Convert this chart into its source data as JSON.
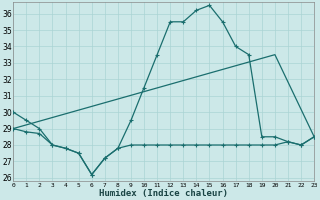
{
  "xlabel": "Humidex (Indice chaleur)",
  "xlim": [
    0,
    23
  ],
  "ylim": [
    25.8,
    36.7
  ],
  "yticks": [
    26,
    27,
    28,
    29,
    30,
    31,
    32,
    33,
    34,
    35,
    36
  ],
  "xticks": [
    0,
    1,
    2,
    3,
    4,
    5,
    6,
    7,
    8,
    9,
    10,
    11,
    12,
    13,
    14,
    15,
    16,
    17,
    18,
    19,
    20,
    21,
    22,
    23
  ],
  "bg_color": "#cce8e8",
  "line_color": "#1a6e6e",
  "grid_color": "#aad4d4",
  "line1_x": [
    0,
    1,
    2,
    3,
    4,
    5,
    6,
    7,
    8,
    9,
    10,
    11,
    12,
    13,
    14,
    15,
    16,
    17,
    18,
    19,
    20,
    21,
    22,
    23
  ],
  "line1_y": [
    30.0,
    29.5,
    29.0,
    28.0,
    27.8,
    27.5,
    26.2,
    27.2,
    27.8,
    29.5,
    31.5,
    33.5,
    35.5,
    35.5,
    36.2,
    36.5,
    35.5,
    34.0,
    33.5,
    28.5,
    28.5,
    28.2,
    28.0,
    28.5
  ],
  "line2_x": [
    0,
    1,
    2,
    3,
    4,
    5,
    6,
    7,
    8,
    9,
    10,
    11,
    12,
    13,
    14,
    15,
    16,
    17,
    18,
    19,
    20,
    21,
    22,
    23
  ],
  "line2_y": [
    29.0,
    28.8,
    28.7,
    28.0,
    27.8,
    27.5,
    26.2,
    27.2,
    27.8,
    28.0,
    28.0,
    28.0,
    28.0,
    28.0,
    28.0,
    28.0,
    28.0,
    28.0,
    28.0,
    28.0,
    28.0,
    28.2,
    28.0,
    28.5
  ],
  "line3_x": [
    0,
    20,
    23
  ],
  "line3_y": [
    29.0,
    33.5,
    28.5
  ]
}
